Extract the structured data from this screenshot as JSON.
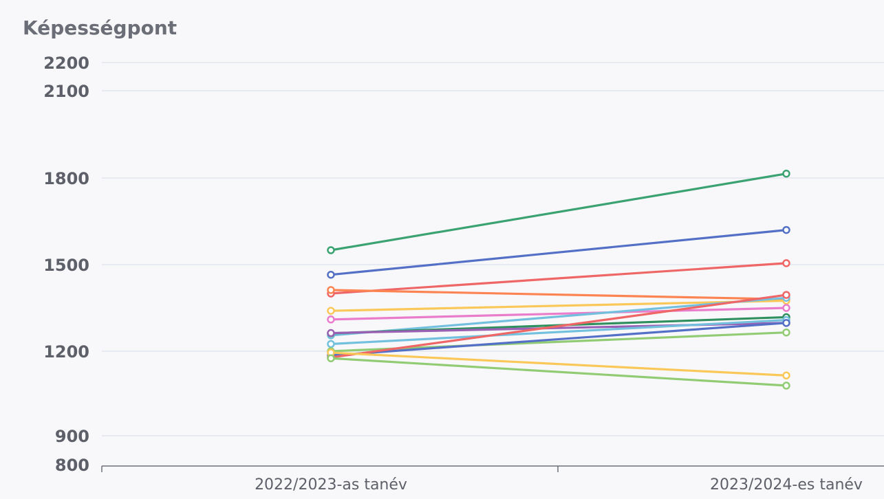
{
  "chart_data": {
    "type": "line",
    "title": "Képességpont",
    "categories": [
      "2022/2023-as tanév",
      "2023/2024-es tanév"
    ],
    "y_ticks": [
      800,
      900,
      1200,
      1500,
      1800,
      2100,
      2200
    ],
    "ylim": [
      800,
      2200
    ],
    "grid": true,
    "series": [
      {
        "color": "#3ba272",
        "values": [
          1550,
          1815
        ]
      },
      {
        "color": "#5470c6",
        "values": [
          1465,
          1620
        ]
      },
      {
        "color": "#ee6666",
        "values": [
          1400,
          1505
        ]
      },
      {
        "color": "#fc8452",
        "values": [
          1412,
          1380
        ]
      },
      {
        "color": "#fac858",
        "values": [
          1340,
          1375
        ]
      },
      {
        "color": "#ea7ccc",
        "values": [
          1310,
          1350
        ]
      },
      {
        "color": "#73c0de",
        "values": [
          1255,
          1385
        ]
      },
      {
        "color": "#2f8f5f",
        "values": [
          1262,
          1318
        ]
      },
      {
        "color": "#9a60b4",
        "values": [
          1263,
          1298
        ]
      },
      {
        "color": "#73c0de",
        "values": [
          1225,
          1308
        ]
      },
      {
        "color": "#91cc75",
        "values": [
          1200,
          1265
        ]
      },
      {
        "color": "#5470c6",
        "values": [
          1185,
          1298
        ]
      },
      {
        "color": "#ee6666",
        "values": [
          1178,
          1395
        ]
      },
      {
        "color": "#fac858",
        "values": [
          1195,
          1114
        ]
      },
      {
        "color": "#91cc75",
        "values": [
          1175,
          1078
        ]
      }
    ]
  }
}
